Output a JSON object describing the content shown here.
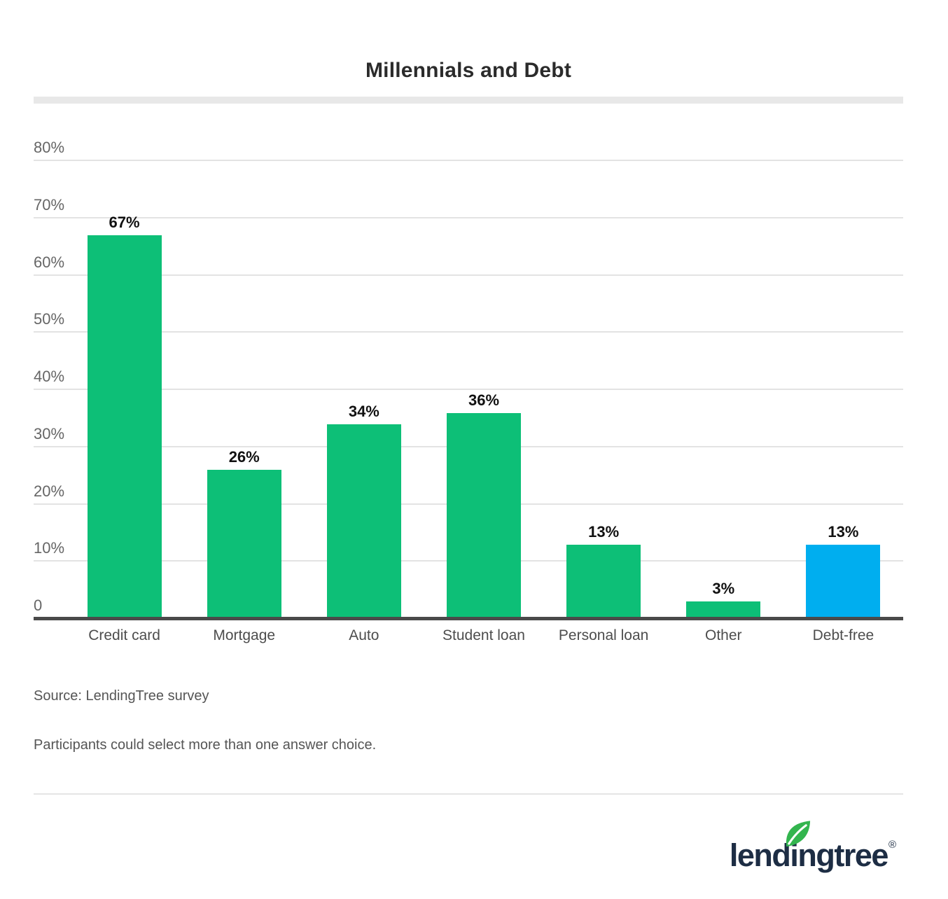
{
  "chart_data": {
    "type": "bar",
    "title": "Millennials and Debt",
    "categories": [
      "Credit card",
      "Mortgage",
      "Auto",
      "Student loan",
      "Personal loan",
      "Other",
      "Debt-free"
    ],
    "values": [
      67,
      26,
      34,
      36,
      13,
      3,
      13
    ],
    "value_labels": [
      "67%",
      "26%",
      "34%",
      "36%",
      "13%",
      "3%",
      "13%"
    ],
    "bar_colors": [
      "#0dbf77",
      "#0dbf77",
      "#0dbf77",
      "#0dbf77",
      "#0dbf77",
      "#0dbf77",
      "#00aeef"
    ],
    "xlabel": "",
    "ylabel": "",
    "ylim": [
      0,
      80
    ],
    "yticks": [
      {
        "value": 80,
        "label": "80%"
      },
      {
        "value": 70,
        "label": "70%"
      },
      {
        "value": 60,
        "label": "60%"
      },
      {
        "value": 50,
        "label": "50%"
      },
      {
        "value": 40,
        "label": "40%"
      },
      {
        "value": 30,
        "label": "30%"
      },
      {
        "value": 20,
        "label": "20%"
      },
      {
        "value": 10,
        "label": "10%"
      },
      {
        "value": 0,
        "label": "0"
      }
    ],
    "grid": true,
    "legend": "none"
  },
  "footer": {
    "source": "Source: LendingTree survey",
    "note": "Participants could select more than one answer choice."
  },
  "branding": {
    "logo_text": "lendingtree",
    "registered_mark": "®",
    "leaf_color": "#33b54e",
    "text_color": "#1d2d44"
  },
  "colors": {
    "bar_green": "#0dbf77",
    "bar_blue": "#00aeef",
    "gridline": "#e3e3e3",
    "axis_line": "#4a4a4a",
    "title_underline": "#e8e8e8"
  }
}
